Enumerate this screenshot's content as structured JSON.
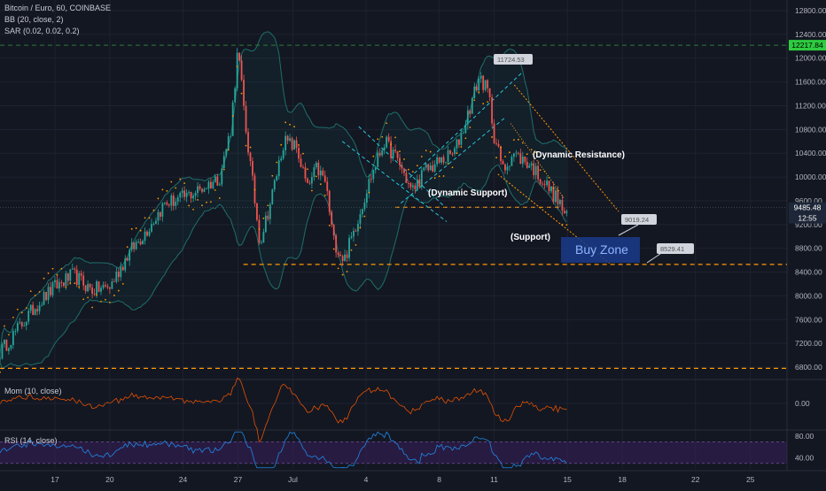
{
  "legend": {
    "title": "Bitcoin / Euro, 60, COINBASE",
    "bb": "BB (20, close, 2)",
    "sar": "SAR (0.02, 0.02, 0.2)"
  },
  "colors": {
    "background": "#131722",
    "grid": "#1e2230",
    "candle_up": "#26a69a",
    "candle_down": "#ef5350",
    "sar": "#ff9800",
    "bb": "#1e6f6a",
    "support_line": "#ff9800",
    "trend_cyan": "#26c6da",
    "price_tag": "#2a2e39",
    "last_price_tag": "#1e2738",
    "top_tag": "#2ecc40",
    "buy_zone": "#1a3a8a",
    "mom_line": "#e65100",
    "rsi_line": "#1e88e5",
    "rsi_band": "#3b1f5c"
  },
  "chart_data": [
    {
      "type": "candlestick",
      "pane": "price",
      "title": "Bitcoin / Euro, 60, COINBASE",
      "ylim": [
        6600,
        12900
      ],
      "y_ticks": [
        "12800.00",
        "12400.00",
        "12000.00",
        "11600.00",
        "11200.00",
        "10800.00",
        "10400.00",
        "10000.00",
        "9600.00",
        "9200.00",
        "8800.00",
        "8400.00",
        "8000.00",
        "7600.00",
        "7200.00",
        "6800.00"
      ],
      "x_ticks": [
        "17",
        "20",
        "24",
        "27",
        "Jul",
        "4",
        "8",
        "11",
        "15",
        "18",
        "22",
        "25"
      ],
      "x_tick_days": [
        17,
        20,
        24,
        27,
        30,
        34,
        38,
        41,
        45,
        48,
        52,
        55
      ],
      "x_range_days": [
        14,
        57
      ],
      "price_series_days": [
        14.0,
        15.0,
        16.0,
        17.0,
        18.0,
        19.0,
        20.0,
        21.0,
        22.0,
        23.0,
        24.0,
        25.0,
        26.0,
        26.6,
        27.0,
        27.4,
        27.8,
        28.2,
        28.8,
        29.5,
        30.2,
        30.8,
        31.3,
        31.8,
        32.2,
        32.8,
        33.5,
        34.2,
        35.0,
        35.8,
        36.5,
        37.2,
        38.0,
        38.8,
        39.3,
        39.8,
        40.2,
        40.7,
        41.0,
        41.5,
        42.0,
        42.5,
        43.0,
        43.5,
        44.0,
        44.5,
        45.0
      ],
      "price_series_close": [
        7050,
        7450,
        7850,
        8150,
        8350,
        8100,
        8150,
        8700,
        9100,
        9550,
        9650,
        9800,
        10000,
        10800,
        12150,
        10900,
        9900,
        8900,
        9600,
        10600,
        10500,
        9800,
        10150,
        9900,
        8950,
        8600,
        9250,
        9950,
        10600,
        10250,
        9750,
        10100,
        10250,
        10400,
        10800,
        11300,
        11700,
        11400,
        10700,
        10100,
        10400,
        10300,
        10200,
        10000,
        9800,
        9600,
        9280
      ],
      "y_tags": {
        "last_price": "9485.48",
        "countdown": "12:55",
        "top_level": "12217.84",
        "peak": "11724.53",
        "projection": "9019.24",
        "support_target": "8529.41"
      },
      "levels": {
        "top_level": 12217.84,
        "support": 8529.41,
        "dynamic_support": 9490,
        "lower_dashed": 6780,
        "last_price": 9485.48
      },
      "annotations": {
        "dynamic_resistance": "(Dynamic Resistance)",
        "dynamic_support": "(Dynamic Support)",
        "support": "(Support)",
        "buy_zone": "Buy Zone"
      }
    },
    {
      "type": "line",
      "pane": "momentum",
      "title": "Mom (10, close)",
      "y_ticks": [
        "0.00"
      ],
      "ylim": [
        -1,
        1
      ]
    },
    {
      "type": "line",
      "pane": "rsi",
      "title": "RSI (14, close)",
      "y_ticks": [
        "80.00",
        "40.00"
      ],
      "ylim": [
        20,
        90
      ],
      "band": [
        30,
        70
      ]
    }
  ]
}
